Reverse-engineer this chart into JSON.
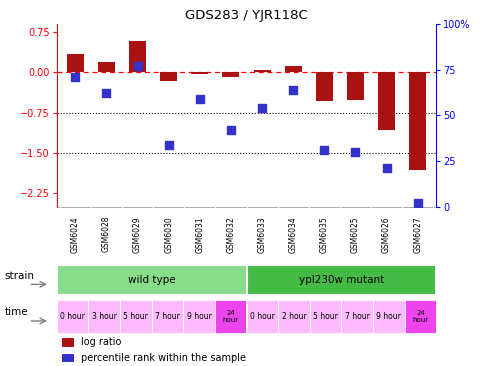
{
  "title": "GDS283 / YJR118C",
  "samples": [
    "GSM6024",
    "GSM6028",
    "GSM6029",
    "GSM6030",
    "GSM6031",
    "GSM6032",
    "GSM6033",
    "GSM6034",
    "GSM6035",
    "GSM6025",
    "GSM6026",
    "GSM6027"
  ],
  "log_ratio": [
    0.33,
    0.19,
    0.58,
    -0.17,
    -0.04,
    -0.09,
    0.04,
    0.11,
    -0.53,
    -0.52,
    -1.08,
    -1.82
  ],
  "percentile": [
    71,
    62,
    77,
    34,
    59,
    42,
    54,
    64,
    31,
    30,
    21,
    2
  ],
  "ylim_left": [
    -2.5,
    0.9
  ],
  "ylim_right": [
    -2.976,
    1.071
  ],
  "left_ticks": [
    0.75,
    0.0,
    -0.75,
    -1.5,
    -2.25
  ],
  "right_ticks": [
    100,
    75,
    50,
    25,
    0
  ],
  "right_tick_labels": [
    "100%",
    "75",
    "50",
    "25",
    "0"
  ],
  "hlines": [
    -0.75,
    -1.5
  ],
  "bar_color": "#aa1111",
  "dot_color": "#3333cc",
  "strain_wild": "wild type",
  "strain_mutant": "ypl230w mutant",
  "strain_wild_color": "#88dd88",
  "strain_mutant_color": "#44bb44",
  "time_colors_light": "#ffbbff",
  "time_colors_dark": "#ee44ee",
  "time_labels": [
    "0 hour",
    "3 hour",
    "5 hour",
    "7 hour",
    "9 hour",
    "24\nhour",
    "0 hour",
    "2 hour",
    "5 hour",
    "7 hour",
    "9 hour",
    "24\nhour"
  ],
  "time_is_dark": [
    false,
    false,
    false,
    false,
    false,
    true,
    false,
    false,
    false,
    false,
    false,
    true
  ],
  "legend_bar_color": "#aa1111",
  "legend_dot_color": "#3333cc",
  "background_color": "#ffffff",
  "sample_box_color": "#cccccc",
  "wild_count": 6,
  "mutant_count": 6
}
